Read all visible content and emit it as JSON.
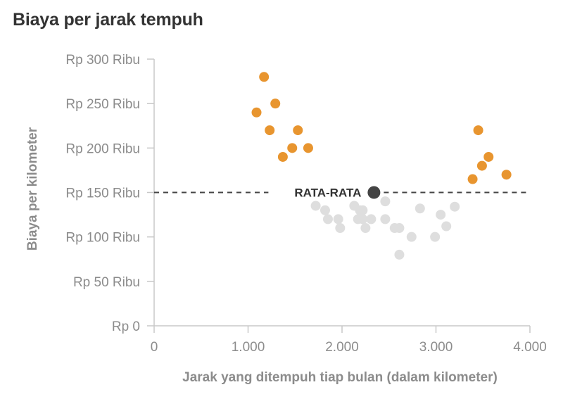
{
  "title": "Biaya per jarak tempuh",
  "chart_data": {
    "type": "scatter",
    "xlabel": "Jarak yang ditempuh tiap bulan (dalam kilometer)",
    "ylabel": "Biaya per kilometer",
    "xlim": [
      0,
      4000
    ],
    "ylim": [
      0,
      300000
    ],
    "x_ticks": [
      0,
      1000,
      2000,
      3000,
      4000
    ],
    "x_tick_labels": [
      "0",
      "1.000",
      "2.000",
      "3.000",
      "4.000"
    ],
    "y_ticks": [
      0,
      50000,
      100000,
      150000,
      200000,
      250000,
      300000
    ],
    "y_tick_labels": [
      "Rp 0",
      "Rp 50 Ribu",
      "Rp 100 Ribu",
      "Rp 150 Ribu",
      "Rp 200 Ribu",
      "Rp 250 Ribu",
      "Rp 300 Ribu"
    ],
    "grid": false,
    "reference_line": {
      "label": "RATA-RATA",
      "y": 150000,
      "marker_x": 2340
    },
    "series": [
      {
        "color": "#e8952f",
        "points": [
          [
            1090,
            240000
          ],
          [
            1170,
            280000
          ],
          [
            1230,
            220000
          ],
          [
            1290,
            250000
          ],
          [
            1370,
            190000
          ],
          [
            1470,
            200000
          ],
          [
            1530,
            220000
          ],
          [
            1640,
            200000
          ],
          [
            3390,
            165000
          ],
          [
            3450,
            220000
          ],
          [
            3490,
            180000
          ],
          [
            3560,
            190000
          ],
          [
            3750,
            170000
          ]
        ]
      },
      {
        "color": "#dedede",
        "points": [
          [
            1720,
            135000
          ],
          [
            1820,
            130000
          ],
          [
            1850,
            120000
          ],
          [
            1960,
            120000
          ],
          [
            1980,
            110000
          ],
          [
            2130,
            135000
          ],
          [
            2170,
            120000
          ],
          [
            2190,
            130000
          ],
          [
            2220,
            120000
          ],
          [
            2220,
            130000
          ],
          [
            2250,
            110000
          ],
          [
            2310,
            120000
          ],
          [
            2460,
            140000
          ],
          [
            2460,
            120000
          ],
          [
            2560,
            110000
          ],
          [
            2610,
            110000
          ],
          [
            2610,
            80000
          ],
          [
            2740,
            100000
          ],
          [
            2830,
            132000
          ],
          [
            2990,
            100000
          ],
          [
            3050,
            125000
          ],
          [
            3110,
            112000
          ],
          [
            3200,
            134000
          ]
        ]
      }
    ]
  }
}
